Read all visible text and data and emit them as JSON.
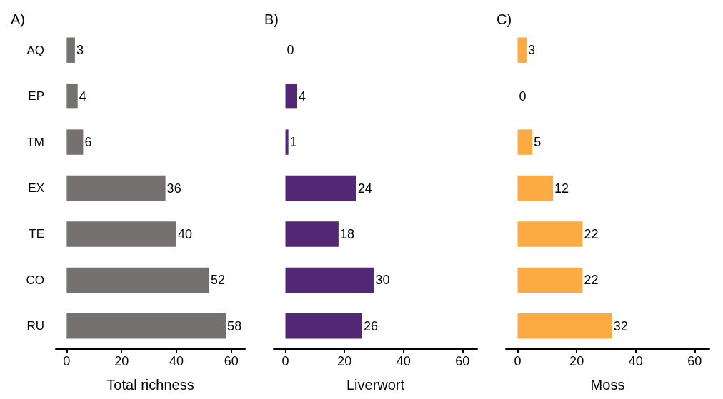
{
  "chart_data": [
    {
      "type": "bar",
      "orientation": "horizontal",
      "title": "A)",
      "xlabel": "Total richness",
      "categories": [
        "AQ",
        "EP",
        "TM",
        "EX",
        "TE",
        "CO",
        "RU"
      ],
      "values": [
        3,
        4,
        6,
        36,
        40,
        52,
        58
      ],
      "color": "#767171",
      "xlim": [
        -4,
        65
      ],
      "xticks": [
        0,
        20,
        40,
        60
      ],
      "data_labels": true
    },
    {
      "type": "bar",
      "orientation": "horizontal",
      "title": "B)",
      "xlabel": "Liverwort",
      "categories": [
        null,
        null,
        null,
        null,
        null,
        null,
        null
      ],
      "values": [
        0,
        4,
        1,
        24,
        18,
        30,
        26
      ],
      "color": "#522773",
      "xlim": [
        -4,
        65
      ],
      "xticks": [
        0,
        20,
        40,
        60
      ],
      "data_labels": true,
      "tick_labels": "x"
    },
    {
      "type": "bar",
      "orientation": "horizontal",
      "title": "C)",
      "xlabel": "Moss",
      "categories": [
        null,
        null,
        null,
        null,
        null,
        null,
        null
      ],
      "values": [
        3,
        0,
        5,
        12,
        22,
        22,
        32
      ],
      "color": "#fbab42",
      "xlim": [
        -4,
        65
      ],
      "xticks": [
        0,
        20,
        40,
        60
      ],
      "data_labels": true,
      "tick_labels": "x"
    }
  ]
}
